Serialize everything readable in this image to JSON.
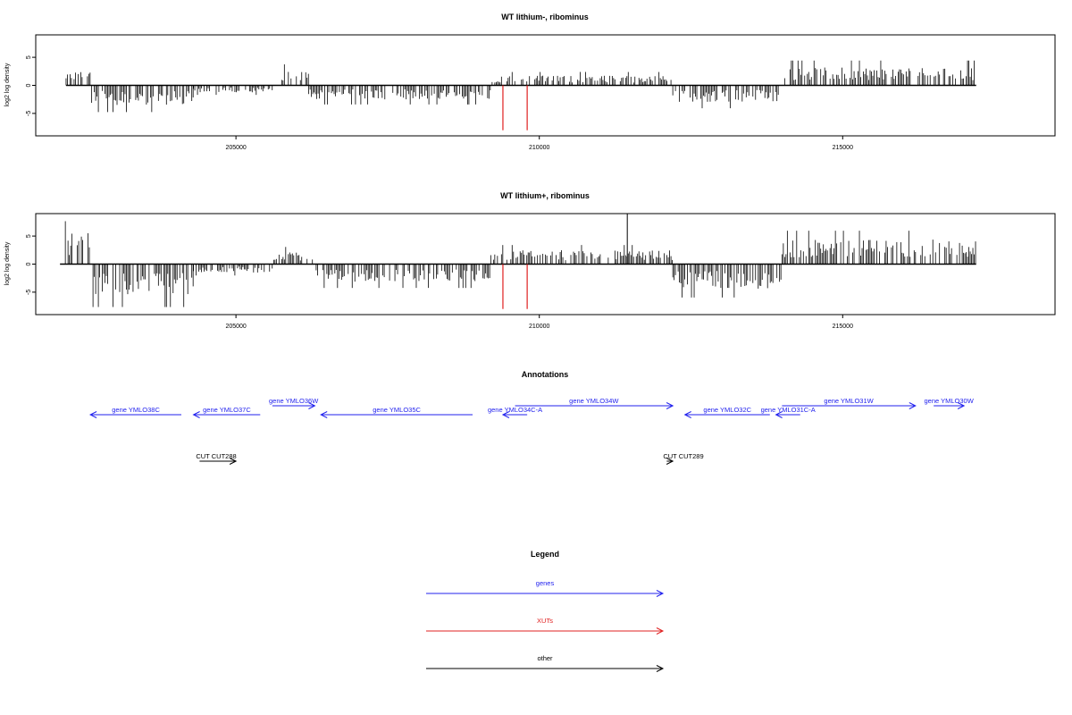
{
  "chart_data": [
    {
      "type": "bar",
      "title": "WT lithium-, ribominus",
      "xlabel": "",
      "ylabel": "log2 log density",
      "xlim": [
        201700,
        218500
      ],
      "ylim": [
        -9,
        9
      ],
      "xticks": [
        205000,
        210000,
        215000
      ],
      "yticks": [
        -5,
        0,
        5
      ],
      "data_range": [
        202200,
        217200
      ],
      "grid": false,
      "bar_color": "#000000",
      "profile": [
        {
          "from": 202200,
          "to": 202600,
          "mid": 2.0
        },
        {
          "from": 202600,
          "to": 204300,
          "mid": -2.8
        },
        {
          "from": 204300,
          "to": 205600,
          "mid": -1.0
        },
        {
          "from": 205600,
          "to": 206200,
          "mid": 2.2
        },
        {
          "from": 206200,
          "to": 209200,
          "mid": -2.0
        },
        {
          "from": 209200,
          "to": 212200,
          "mid": 1.4
        },
        {
          "from": 212200,
          "to": 214000,
          "mid": -2.4
        },
        {
          "from": 214000,
          "to": 217200,
          "mid": 2.6
        }
      ],
      "markers": [
        {
          "x": 209400,
          "y": -8,
          "color": "#e02020"
        },
        {
          "x": 209800,
          "y": -8,
          "color": "#e02020"
        }
      ]
    },
    {
      "type": "bar",
      "title": "WT lithium+, ribominus",
      "xlabel": "",
      "ylabel": "log2 log density",
      "xlim": [
        201700,
        218500
      ],
      "ylim": [
        -9,
        9
      ],
      "xticks": [
        205000,
        210000,
        215000
      ],
      "yticks": [
        -5,
        0,
        5
      ],
      "data_range": [
        202100,
        217200
      ],
      "grid": false,
      "bar_color": "#000000",
      "profile": [
        {
          "from": 202100,
          "to": 202600,
          "mid": 4.5
        },
        {
          "from": 202600,
          "to": 204300,
          "mid": -4.5
        },
        {
          "from": 204300,
          "to": 205600,
          "mid": -1.2
        },
        {
          "from": 205600,
          "to": 206300,
          "mid": 1.8
        },
        {
          "from": 206300,
          "to": 209200,
          "mid": -2.5
        },
        {
          "from": 209200,
          "to": 212200,
          "mid": 2.0
        },
        {
          "from": 212200,
          "to": 214000,
          "mid": -3.5
        },
        {
          "from": 214000,
          "to": 217200,
          "mid": 3.5
        }
      ],
      "peak": {
        "x": 211450,
        "y": 9
      },
      "markers": [
        {
          "x": 209400,
          "y": -8,
          "color": "#e02020"
        },
        {
          "x": 209800,
          "y": -8,
          "color": "#e02020"
        }
      ]
    }
  ],
  "annotations": {
    "title": "Annotations",
    "genes_color": "#2222ee",
    "other_color": "#000000",
    "genes": [
      {
        "label": "gene YMLO38C",
        "start": 204100,
        "end": 202600,
        "row": "lower"
      },
      {
        "label": "gene YMLO37C",
        "start": 205400,
        "end": 204300,
        "row": "lower"
      },
      {
        "label": "gene YMLO36W",
        "start": 205600,
        "end": 206300,
        "row": "upper"
      },
      {
        "label": "gene YMLO35C",
        "start": 208900,
        "end": 206400,
        "row": "lower"
      },
      {
        "label": "gene YMLO34C-A",
        "start": 209800,
        "end": 209400,
        "row": "lower"
      },
      {
        "label": "gene YMLO34W",
        "start": 209600,
        "end": 212200,
        "row": "upper"
      },
      {
        "label": "gene YMLO32C",
        "start": 213800,
        "end": 212400,
        "row": "lower"
      },
      {
        "label": "gene YMLO31C-A",
        "start": 214300,
        "end": 213900,
        "row": "lower"
      },
      {
        "label": "gene YMLO31W",
        "start": 214000,
        "end": 216200,
        "row": "upper"
      },
      {
        "label": "gene YMLO30W",
        "start": 216500,
        "end": 217000,
        "row": "upper"
      }
    ],
    "other": [
      {
        "label": "CUT CUT288",
        "start": 204400,
        "end": 205000
      },
      {
        "label": "CUT CUT289",
        "start": 212100,
        "end": 212200
      }
    ]
  },
  "legend": {
    "title": "Legend",
    "items": [
      {
        "label": "genes",
        "color": "#2222ee"
      },
      {
        "label": "XUTs",
        "color": "#e02020"
      },
      {
        "label": "other",
        "color": "#000000"
      }
    ]
  }
}
